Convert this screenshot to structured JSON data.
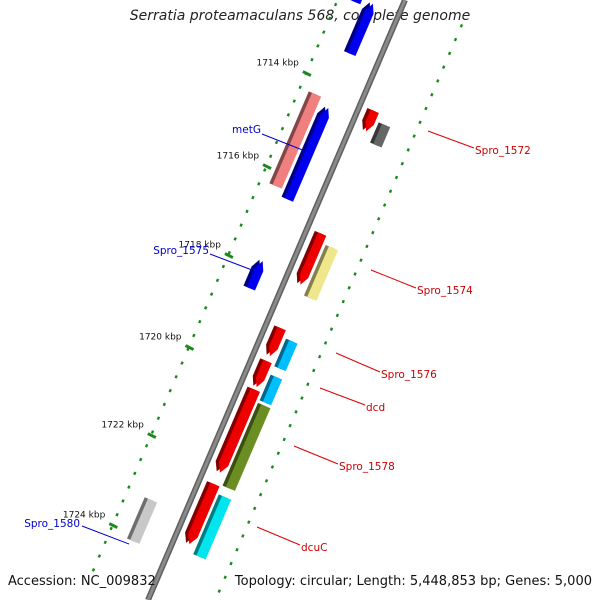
{
  "title": "Serratia proteamaculans 568, complete genome",
  "accession": "Accession: NC_009832",
  "summary": "Topology: circular; Length: 5,448,853 bp; Genes: 5,000",
  "colors": {
    "backbone": "#8a8a8a",
    "tick_dot": "#1a8a1a",
    "label_forward": "#0000cc",
    "label_reverse": "#cc0000",
    "label_leader_forward": "#0000cc",
    "label_leader_reverse": "#dd0000"
  },
  "scale_ticks": [
    "1714 kbp",
    "1716 kbp",
    "1718 kbp",
    "1720 kbp",
    "1722 kbp",
    "1724 kbp"
  ],
  "gene_labels": [
    {
      "text": "metG",
      "strand": "forward"
    },
    {
      "text": "Spro_1575",
      "strand": "forward"
    },
    {
      "text": "Spro_1580",
      "strand": "forward"
    },
    {
      "text": "Spro_1572",
      "strand": "reverse"
    },
    {
      "text": "Spro_1574",
      "strand": "reverse"
    },
    {
      "text": "Spro_1576",
      "strand": "reverse"
    },
    {
      "text": "dcd",
      "strand": "reverse"
    },
    {
      "text": "Spro_1578",
      "strand": "reverse"
    },
    {
      "text": "dcuC",
      "strand": "reverse"
    }
  ],
  "features": [
    {
      "strand": "forward",
      "color": "#0000ee",
      "icon": "arrow-up"
    },
    {
      "strand": "forward",
      "color": "#0000ee",
      "icon": "arrow-up"
    },
    {
      "strand": "forward",
      "color": "#f08080",
      "icon": "bar"
    },
    {
      "strand": "forward",
      "color": "#0000ee",
      "icon": "arrow-up"
    },
    {
      "strand": "forward",
      "color": "#0000ee",
      "icon": "arrow-up"
    },
    {
      "strand": "forward",
      "color": "#c8c8c8",
      "icon": "bar"
    },
    {
      "strand": "reverse",
      "color": "#ee0000",
      "icon": "arrow-down"
    },
    {
      "strand": "reverse",
      "color": "#666666",
      "icon": "bar"
    },
    {
      "strand": "reverse",
      "color": "#ee0000",
      "icon": "arrow-down"
    },
    {
      "strand": "reverse",
      "color": "#f0e68c",
      "icon": "bar"
    },
    {
      "strand": "reverse",
      "color": "#ee0000",
      "icon": "arrow-down"
    },
    {
      "strand": "reverse",
      "color": "#00bfff",
      "icon": "bar"
    },
    {
      "strand": "reverse",
      "color": "#ee0000",
      "icon": "arrow-down"
    },
    {
      "strand": "reverse",
      "color": "#00bfff",
      "icon": "bar"
    },
    {
      "strand": "reverse",
      "color": "#ee0000",
      "icon": "arrow-down"
    },
    {
      "strand": "reverse",
      "color": "#6b8e23",
      "icon": "bar"
    },
    {
      "strand": "reverse",
      "color": "#ee0000",
      "icon": "arrow-down"
    },
    {
      "strand": "reverse",
      "color": "#00e5ee",
      "icon": "bar"
    }
  ]
}
